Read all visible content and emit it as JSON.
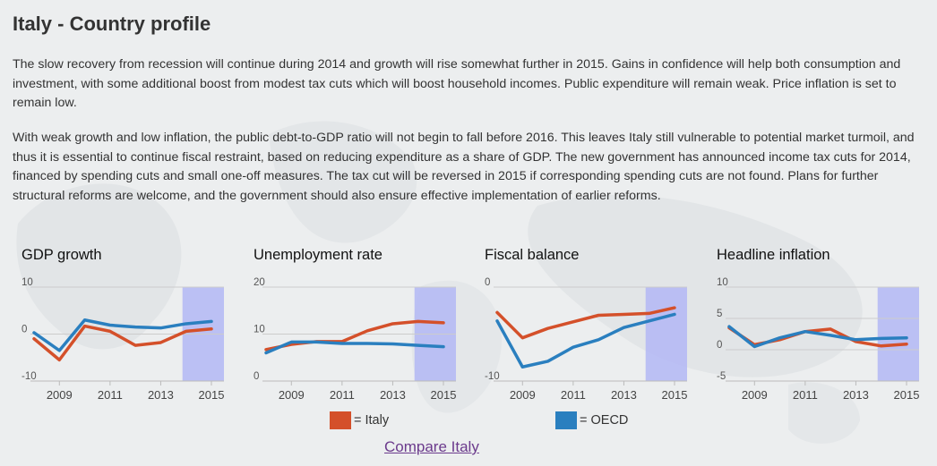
{
  "page": {
    "title": "Italy - Country profile",
    "paragraphs": [
      "The slow recovery from recession will continue during 2014 and growth will rise somewhat further in 2015. Gains in confidence will help both consumption and investment, with some additional boost from modest tax cuts which will boost household incomes. Public expenditure will remain weak. Price inflation is set to remain low.",
      "With weak growth and low inflation, the public debt-to-GDP ratio will not begin to fall before 2016. This leaves Italy still vulnerable to potential market turmoil, and thus it is essential to continue fiscal restraint, based on reducing expenditure as a share of GDP. The new government has announced income tax cuts for 2014, financed by spending cuts and small one-off measures. The tax cut will be reversed in 2015 if corresponding spending cuts are not found. Plans for further structural reforms are welcome, and the government should also ensure effective implementation of earlier reforms."
    ],
    "legend": {
      "italy_label": "= Italy",
      "oecd_label": "= OECD"
    },
    "compare_link": "Compare Italy"
  },
  "colors": {
    "italy": "#d4502a",
    "oecd": "#2a7fbf",
    "projection_band": "#b3b7f4",
    "grid": "#cccccc",
    "text": "#333333"
  },
  "chart_data": [
    {
      "type": "line",
      "title": "GDP growth",
      "x": [
        2008,
        2009,
        2010,
        2011,
        2012,
        2013,
        2014,
        2015
      ],
      "xticks": [
        "2009",
        "2011",
        "2013",
        "2015"
      ],
      "yticks": [
        "10",
        "0",
        "-10"
      ],
      "ylim": [
        -10,
        10
      ],
      "projection_from": 2014,
      "series": [
        {
          "name": "Italy",
          "values": [
            -1.0,
            -5.5,
            1.7,
            0.6,
            -2.4,
            -1.8,
            0.6,
            1.1
          ]
        },
        {
          "name": "OECD",
          "values": [
            0.3,
            -3.5,
            3.0,
            1.9,
            1.5,
            1.3,
            2.2,
            2.7
          ]
        }
      ]
    },
    {
      "type": "line",
      "title": "Unemployment rate",
      "x": [
        2008,
        2009,
        2010,
        2011,
        2012,
        2013,
        2014,
        2015
      ],
      "xticks": [
        "2009",
        "2011",
        "2013",
        "2015"
      ],
      "yticks": [
        "20",
        "10",
        "0"
      ],
      "ylim": [
        0,
        20
      ],
      "projection_from": 2014,
      "series": [
        {
          "name": "Italy",
          "values": [
            6.7,
            7.8,
            8.4,
            8.4,
            10.7,
            12.2,
            12.7,
            12.4
          ]
        },
        {
          "name": "OECD",
          "values": [
            6.0,
            8.3,
            8.3,
            8.0,
            8.0,
            7.9,
            7.6,
            7.3
          ]
        }
      ]
    },
    {
      "type": "line",
      "title": "Fiscal balance",
      "x": [
        2008,
        2009,
        2010,
        2011,
        2012,
        2013,
        2014,
        2015
      ],
      "xticks": [
        "2009",
        "2011",
        "2013",
        "2015"
      ],
      "yticks": [
        "0",
        "-10"
      ],
      "ylim": [
        -10,
        0
      ],
      "projection_from": 2014,
      "series": [
        {
          "name": "Italy",
          "values": [
            -2.7,
            -5.4,
            -4.4,
            -3.7,
            -3.0,
            -2.9,
            -2.8,
            -2.2
          ]
        },
        {
          "name": "OECD",
          "values": [
            -3.6,
            -8.5,
            -7.9,
            -6.4,
            -5.6,
            -4.3,
            -3.6,
            -2.9
          ]
        }
      ]
    },
    {
      "type": "line",
      "title": "Headline inflation",
      "x": [
        2008,
        2009,
        2010,
        2011,
        2012,
        2013,
        2014,
        2015
      ],
      "xticks": [
        "2009",
        "2011",
        "2013",
        "2015"
      ],
      "yticks": [
        "10",
        "5",
        "0",
        "-5"
      ],
      "ylim": [
        -5,
        10
      ],
      "projection_from": 2014,
      "series": [
        {
          "name": "Italy",
          "values": [
            3.5,
            0.8,
            1.6,
            2.9,
            3.3,
            1.3,
            0.6,
            0.9
          ]
        },
        {
          "name": "OECD",
          "values": [
            3.7,
            0.5,
            1.9,
            2.9,
            2.3,
            1.6,
            1.8,
            1.9
          ]
        }
      ]
    }
  ]
}
